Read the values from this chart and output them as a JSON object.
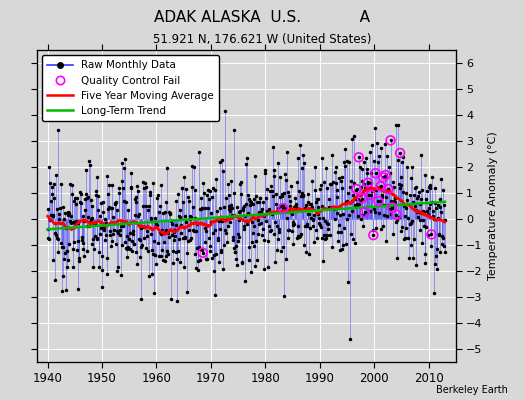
{
  "title": "ADAK ALASKA  U.S.            A",
  "subtitle": "51.921 N, 176.621 W (United States)",
  "ylabel": "Temperature Anomaly (°C)",
  "credit": "Berkeley Earth",
  "ylim": [
    -5.5,
    6.5
  ],
  "xlim": [
    1938,
    2015
  ],
  "yticks": [
    -5,
    -4,
    -3,
    -2,
    -1,
    0,
    1,
    2,
    3,
    4,
    5,
    6
  ],
  "xticks": [
    1940,
    1950,
    1960,
    1970,
    1980,
    1990,
    2000,
    2010
  ],
  "raw_color": "#3333FF",
  "ma_color": "#FF0000",
  "trend_color": "#00BB00",
  "qc_color": "#FF00FF",
  "plot_bg": "#D8D8D8",
  "fig_bg": "#D8D8D8",
  "grid_color": "#FFFFFF",
  "seed": 12345,
  "years_start": 1940,
  "years_end": 2013
}
